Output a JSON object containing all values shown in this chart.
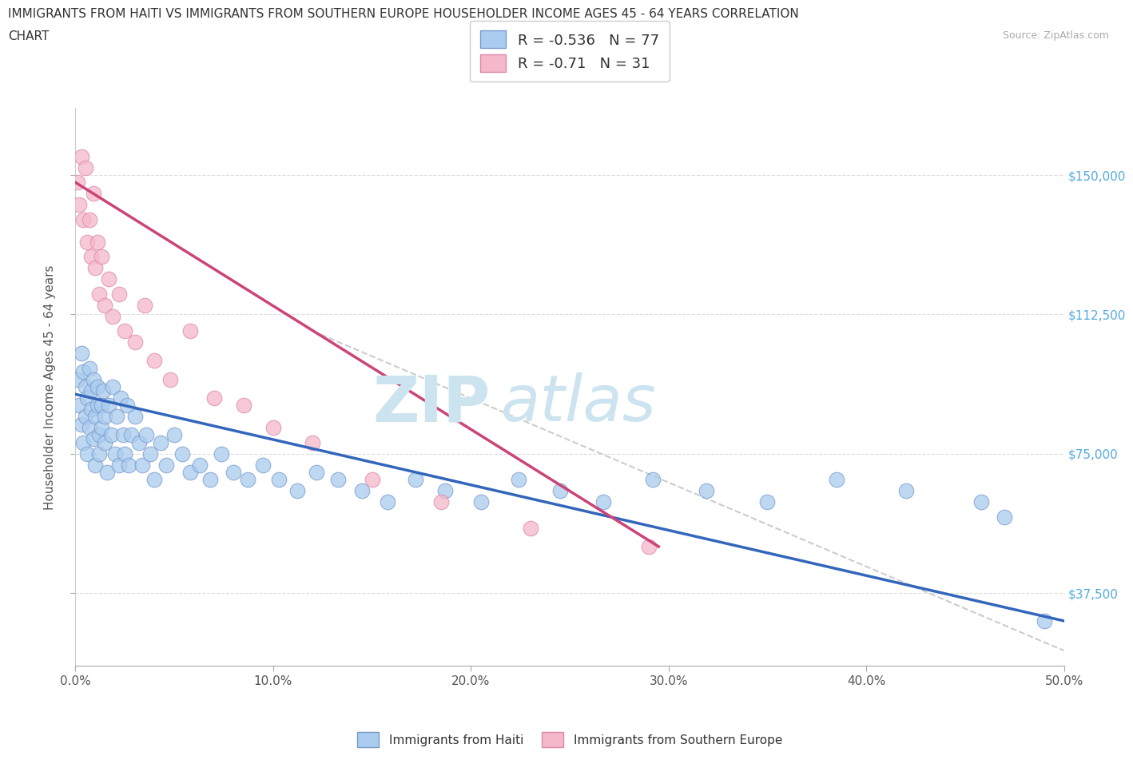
{
  "title_line1": "IMMIGRANTS FROM HAITI VS IMMIGRANTS FROM SOUTHERN EUROPE HOUSEHOLDER INCOME AGES 45 - 64 YEARS CORRELATION",
  "title_line2": "CHART",
  "source_text": "Source: ZipAtlas.com",
  "ylabel": "Householder Income Ages 45 - 64 years",
  "xlim": [
    0.0,
    0.5
  ],
  "xtick_labels": [
    "0.0%",
    "10.0%",
    "20.0%",
    "30.0%",
    "40.0%",
    "50.0%"
  ],
  "xtick_vals": [
    0.0,
    0.1,
    0.2,
    0.3,
    0.4,
    0.5
  ],
  "ytick_labels": [
    "$37,500",
    "$75,000",
    "$112,500",
    "$150,000"
  ],
  "ytick_vals": [
    37500,
    75000,
    112500,
    150000
  ],
  "ylim": [
    18000,
    168000
  ],
  "haiti_color": "#aaccee",
  "haiti_edge_color": "#7799cc",
  "southern_europe_color": "#f5b8ca",
  "southern_europe_edge_color": "#dd88aa",
  "haiti_R": -0.536,
  "haiti_N": 77,
  "southern_europe_R": -0.71,
  "southern_europe_N": 31,
  "watermark_zip": "ZIP",
  "watermark_atlas": "atlas",
  "watermark_color": "#cce4f0",
  "trend_line_haiti_color": "#3366bb",
  "trend_line_se_color": "#cc4477",
  "trend_line_dashed_color": "#cccccc",
  "haiti_scatter_x": [
    0.001,
    0.002,
    0.003,
    0.003,
    0.004,
    0.004,
    0.005,
    0.005,
    0.006,
    0.006,
    0.007,
    0.007,
    0.008,
    0.008,
    0.009,
    0.009,
    0.01,
    0.01,
    0.011,
    0.011,
    0.012,
    0.012,
    0.013,
    0.013,
    0.014,
    0.015,
    0.015,
    0.016,
    0.017,
    0.018,
    0.019,
    0.02,
    0.021,
    0.022,
    0.023,
    0.024,
    0.025,
    0.026,
    0.027,
    0.028,
    0.03,
    0.032,
    0.034,
    0.036,
    0.038,
    0.04,
    0.043,
    0.046,
    0.05,
    0.054,
    0.058,
    0.063,
    0.068,
    0.074,
    0.08,
    0.087,
    0.095,
    0.103,
    0.112,
    0.122,
    0.133,
    0.145,
    0.158,
    0.172,
    0.187,
    0.205,
    0.224,
    0.245,
    0.267,
    0.292,
    0.319,
    0.35,
    0.385,
    0.42,
    0.458,
    0.47,
    0.49
  ],
  "haiti_scatter_y": [
    95000,
    88000,
    102000,
    83000,
    97000,
    78000,
    93000,
    85000,
    90000,
    75000,
    98000,
    82000,
    87000,
    92000,
    79000,
    95000,
    85000,
    72000,
    93000,
    88000,
    80000,
    75000,
    88000,
    82000,
    92000,
    78000,
    85000,
    70000,
    88000,
    80000,
    93000,
    75000,
    85000,
    72000,
    90000,
    80000,
    75000,
    88000,
    72000,
    80000,
    85000,
    78000,
    72000,
    80000,
    75000,
    68000,
    78000,
    72000,
    80000,
    75000,
    70000,
    72000,
    68000,
    75000,
    70000,
    68000,
    72000,
    68000,
    65000,
    70000,
    68000,
    65000,
    62000,
    68000,
    65000,
    62000,
    68000,
    65000,
    62000,
    68000,
    65000,
    62000,
    68000,
    65000,
    62000,
    58000,
    30000
  ],
  "se_scatter_x": [
    0.001,
    0.002,
    0.003,
    0.004,
    0.005,
    0.006,
    0.007,
    0.008,
    0.009,
    0.01,
    0.011,
    0.012,
    0.013,
    0.015,
    0.017,
    0.019,
    0.022,
    0.025,
    0.03,
    0.035,
    0.04,
    0.048,
    0.058,
    0.07,
    0.085,
    0.1,
    0.12,
    0.15,
    0.185,
    0.23,
    0.29
  ],
  "se_scatter_y": [
    148000,
    142000,
    155000,
    138000,
    152000,
    132000,
    138000,
    128000,
    145000,
    125000,
    132000,
    118000,
    128000,
    115000,
    122000,
    112000,
    118000,
    108000,
    105000,
    115000,
    100000,
    95000,
    108000,
    90000,
    88000,
    82000,
    78000,
    68000,
    62000,
    55000,
    50000
  ],
  "haiti_trend_x0": 0.0,
  "haiti_trend_x1": 0.5,
  "haiti_trend_y0": 91000,
  "haiti_trend_y1": 30000,
  "se_trend_x0": 0.0,
  "se_trend_x1": 0.295,
  "se_trend_y0": 148000,
  "se_trend_y1": 50000,
  "dashed_trend_x0": 0.12,
  "dashed_trend_x1": 0.5,
  "dashed_trend_y0": 108000,
  "dashed_trend_y1": 22000
}
